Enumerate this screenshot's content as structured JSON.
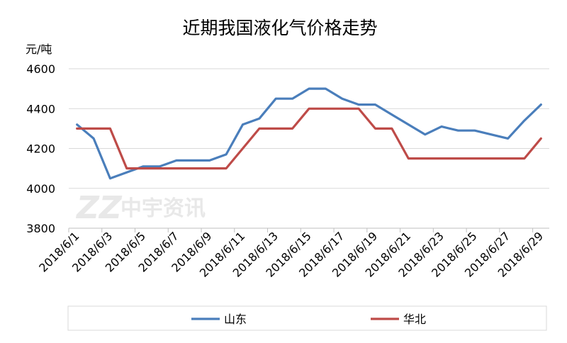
{
  "chart_data": {
    "type": "line",
    "title": "近期我国液化气价格走势",
    "ylabel": "元/吨",
    "xlabel": "",
    "ylim": [
      3800,
      4600
    ],
    "yticks": [
      3800,
      4000,
      4200,
      4400,
      4600
    ],
    "grid": true,
    "legend_position": "bottom",
    "watermark": "中宇资讯",
    "x": [
      "2018/6/1",
      "2018/6/2",
      "2018/6/3",
      "2018/6/4",
      "2018/6/5",
      "2018/6/6",
      "2018/6/7",
      "2018/6/8",
      "2018/6/9",
      "2018/6/10",
      "2018/6/11",
      "2018/6/12",
      "2018/6/13",
      "2018/6/14",
      "2018/6/15",
      "2018/6/16",
      "2018/6/17",
      "2018/6/18",
      "2018/6/19",
      "2018/6/20",
      "2018/6/21",
      "2018/6/22",
      "2018/6/23",
      "2018/6/24",
      "2018/6/25",
      "2018/6/26",
      "2018/6/27",
      "2018/6/28",
      "2018/6/29"
    ],
    "xtick_labels": [
      "2018/6/1",
      "2018/6/3",
      "2018/6/5",
      "2018/6/7",
      "2018/6/9",
      "2018/6/11",
      "2018/6/13",
      "2018/6/15",
      "2018/6/17",
      "2018/6/19",
      "2018/6/21",
      "2018/6/23",
      "2018/6/25",
      "2018/6/27",
      "2018/6/29"
    ],
    "series": [
      {
        "name": "山东",
        "color": "#4A7EBB",
        "values": [
          4320,
          4250,
          4050,
          4080,
          4110,
          4110,
          4140,
          4140,
          4140,
          4170,
          4320,
          4350,
          4450,
          4450,
          4500,
          4500,
          4450,
          4420,
          4420,
          4370,
          4320,
          4270,
          4310,
          4290,
          4290,
          4270,
          4250,
          4340,
          4420
        ]
      },
      {
        "name": "华北",
        "color": "#BE4B48",
        "values": [
          4300,
          4300,
          4300,
          4100,
          4100,
          4100,
          4100,
          4100,
          4100,
          4100,
          4200,
          4300,
          4300,
          4300,
          4400,
          4400,
          4400,
          4400,
          4300,
          4300,
          4150,
          4150,
          4150,
          4150,
          4150,
          4150,
          4150,
          4150,
          4250
        ]
      }
    ]
  }
}
